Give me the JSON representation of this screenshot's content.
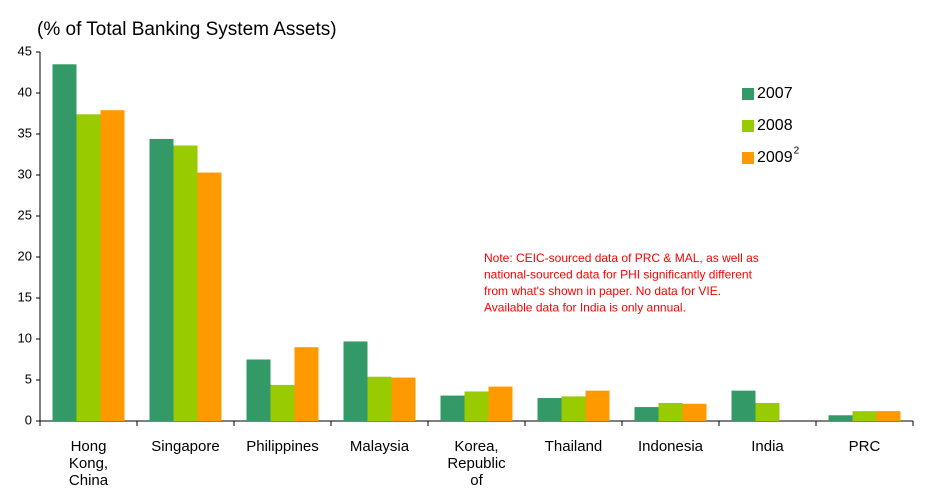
{
  "chart_data": {
    "type": "bar",
    "title": "(% of Total Banking System Assets)",
    "categories": [
      "Hong Kong, China",
      "Singapore",
      "Philippines",
      "Malaysia",
      "Korea, Republic of",
      "Thailand",
      "Indonesia",
      "India",
      "PRC"
    ],
    "series": [
      {
        "name": "2007",
        "color": "#339966",
        "values": [
          43.5,
          34.4,
          7.5,
          9.7,
          3.1,
          2.8,
          1.7,
          3.7,
          0.7
        ]
      },
      {
        "name": "2008",
        "color": "#99cc00",
        "values": [
          37.4,
          33.6,
          4.4,
          5.4,
          3.6,
          3.0,
          2.2,
          2.2,
          1.2
        ]
      },
      {
        "name": "2009",
        "color": "#ff9900",
        "values": [
          37.9,
          30.3,
          9.0,
          5.3,
          4.2,
          3.7,
          2.1,
          null,
          1.2
        ]
      }
    ],
    "legend_marker": "2",
    "annotation": [
      "Note:  CEIC-sourced data of PRC & MAL, as well as",
      "national-sourced data for PHI significantly different",
      "from what's shown in paper.  No data for VIE.",
      "Available data for India is only annual."
    ],
    "ylim": [
      0,
      45
    ],
    "yticks": [
      0,
      5,
      10,
      15,
      20,
      25,
      30,
      35,
      40,
      45
    ],
    "grid": false,
    "legend": "upper right"
  }
}
